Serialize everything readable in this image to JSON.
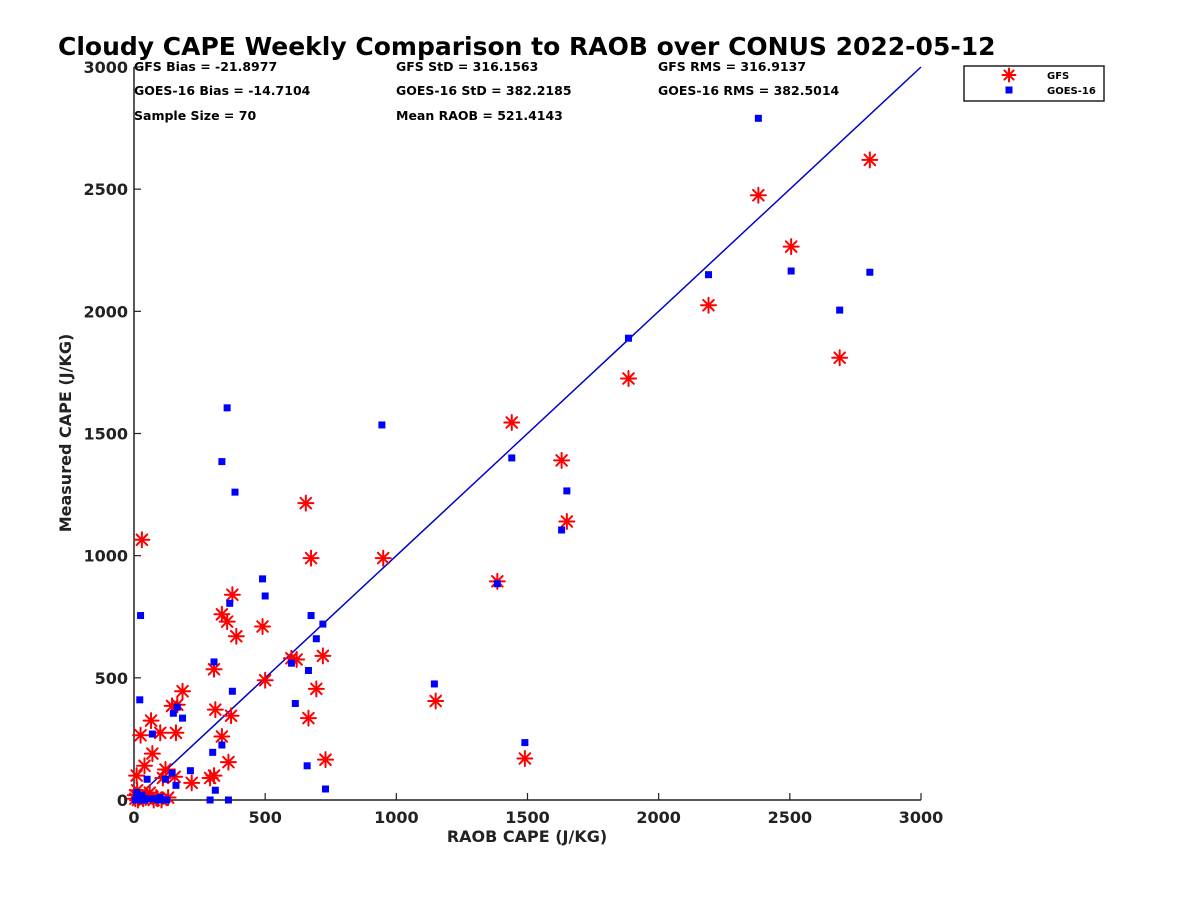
{
  "chart_data": {
    "type": "scatter",
    "title": "Cloudy CAPE Weekly Comparison to RAOB over CONUS 2022-05-12",
    "xlabel": "RAOB CAPE (J/KG)",
    "ylabel": "Measured CAPE (J/KG)",
    "xlim": [
      0,
      3000
    ],
    "ylim": [
      0,
      3000
    ],
    "x_ticks": [
      "0",
      "500",
      "1000",
      "1500",
      "2000",
      "2500",
      "3000"
    ],
    "y_ticks": [
      "0",
      "500",
      "1000",
      "1500",
      "2000",
      "2500",
      "3000"
    ],
    "grid": false,
    "legend_position": "top-right outside",
    "stats": [
      "GFS Bias = -21.8977",
      "GFS StD = 316.1563",
      "GFS RMS = 316.9137",
      "GOES-16 Bias = -14.7104",
      "GOES-16 StD = 382.2185",
      "GOES-16 RMS = 382.5014",
      "Sample Size = 70",
      "Mean RAOB = 521.4143"
    ],
    "fit_line": {
      "color": "#0000cc",
      "x": [
        0,
        3000
      ],
      "y": [
        0,
        3000
      ]
    },
    "series": [
      {
        "name": "GFS",
        "marker": "asterisk",
        "color": "#ff0000",
        "points": [
          [
            5,
            5
          ],
          [
            10,
            100
          ],
          [
            15,
            0
          ],
          [
            20,
            10
          ],
          [
            25,
            265
          ],
          [
            35,
            5
          ],
          [
            40,
            140
          ],
          [
            45,
            10
          ],
          [
            60,
            30
          ],
          [
            65,
            325
          ],
          [
            70,
            190
          ],
          [
            75,
            0
          ],
          [
            85,
            10
          ],
          [
            100,
            275
          ],
          [
            105,
            0
          ],
          [
            110,
            90
          ],
          [
            120,
            125
          ],
          [
            145,
            385
          ],
          [
            155,
            95
          ],
          [
            160,
            275
          ],
          [
            165,
            390
          ],
          [
            185,
            445
          ],
          [
            220,
            70
          ],
          [
            290,
            90
          ],
          [
            305,
            100
          ],
          [
            305,
            535
          ],
          [
            310,
            370
          ],
          [
            335,
            260
          ],
          [
            335,
            760
          ],
          [
            355,
            730
          ],
          [
            360,
            155
          ],
          [
            370,
            345
          ],
          [
            375,
            840
          ],
          [
            390,
            670
          ],
          [
            490,
            710
          ],
          [
            500,
            490
          ],
          [
            600,
            580
          ],
          [
            620,
            575
          ],
          [
            655,
            1215
          ],
          [
            665,
            335
          ],
          [
            675,
            990
          ],
          [
            695,
            455
          ],
          [
            720,
            590
          ],
          [
            730,
            165
          ],
          [
            950,
            990
          ],
          [
            1150,
            405
          ],
          [
            1385,
            895
          ],
          [
            1440,
            1545
          ],
          [
            1490,
            170
          ],
          [
            1630,
            1390
          ],
          [
            1650,
            1140
          ],
          [
            1885,
            1725
          ],
          [
            2190,
            2025
          ],
          [
            2380,
            2475
          ],
          [
            2505,
            2265
          ],
          [
            2690,
            1810
          ],
          [
            2805,
            2620
          ],
          [
            30,
            1065
          ],
          [
            5,
            20
          ],
          [
            50,
            20
          ],
          [
            90,
            5
          ],
          [
            130,
            10
          ],
          [
            12,
            40
          ]
        ]
      },
      {
        "name": "GOES-16",
        "marker": "square",
        "color": "#0000ff",
        "points": [
          [
            5,
            0
          ],
          [
            10,
            30
          ],
          [
            15,
            15
          ],
          [
            20,
            0
          ],
          [
            22,
            410
          ],
          [
            25,
            755
          ],
          [
            30,
            20
          ],
          [
            35,
            5
          ],
          [
            40,
            0
          ],
          [
            50,
            85
          ],
          [
            60,
            5
          ],
          [
            70,
            270
          ],
          [
            80,
            5
          ],
          [
            90,
            0
          ],
          [
            100,
            10
          ],
          [
            110,
            0
          ],
          [
            120,
            85
          ],
          [
            125,
            0
          ],
          [
            145,
            110
          ],
          [
            150,
            355
          ],
          [
            160,
            60
          ],
          [
            165,
            380
          ],
          [
            185,
            335
          ],
          [
            215,
            120
          ],
          [
            290,
            0
          ],
          [
            300,
            195
          ],
          [
            305,
            565
          ],
          [
            310,
            40
          ],
          [
            335,
            225
          ],
          [
            335,
            1385
          ],
          [
            355,
            1605
          ],
          [
            360,
            0
          ],
          [
            365,
            805
          ],
          [
            375,
            445
          ],
          [
            385,
            1260
          ],
          [
            490,
            905
          ],
          [
            500,
            835
          ],
          [
            600,
            560
          ],
          [
            615,
            395
          ],
          [
            660,
            140
          ],
          [
            665,
            530
          ],
          [
            675,
            755
          ],
          [
            695,
            660
          ],
          [
            720,
            720
          ],
          [
            730,
            45
          ],
          [
            945,
            1535
          ],
          [
            1145,
            475
          ],
          [
            1385,
            885
          ],
          [
            1440,
            1400
          ],
          [
            1490,
            235
          ],
          [
            1630,
            1105
          ],
          [
            1650,
            1265
          ],
          [
            1885,
            1890
          ],
          [
            2190,
            2150
          ],
          [
            2380,
            2790
          ],
          [
            2505,
            2165
          ],
          [
            2690,
            2005
          ],
          [
            2805,
            2160
          ]
        ]
      }
    ]
  }
}
